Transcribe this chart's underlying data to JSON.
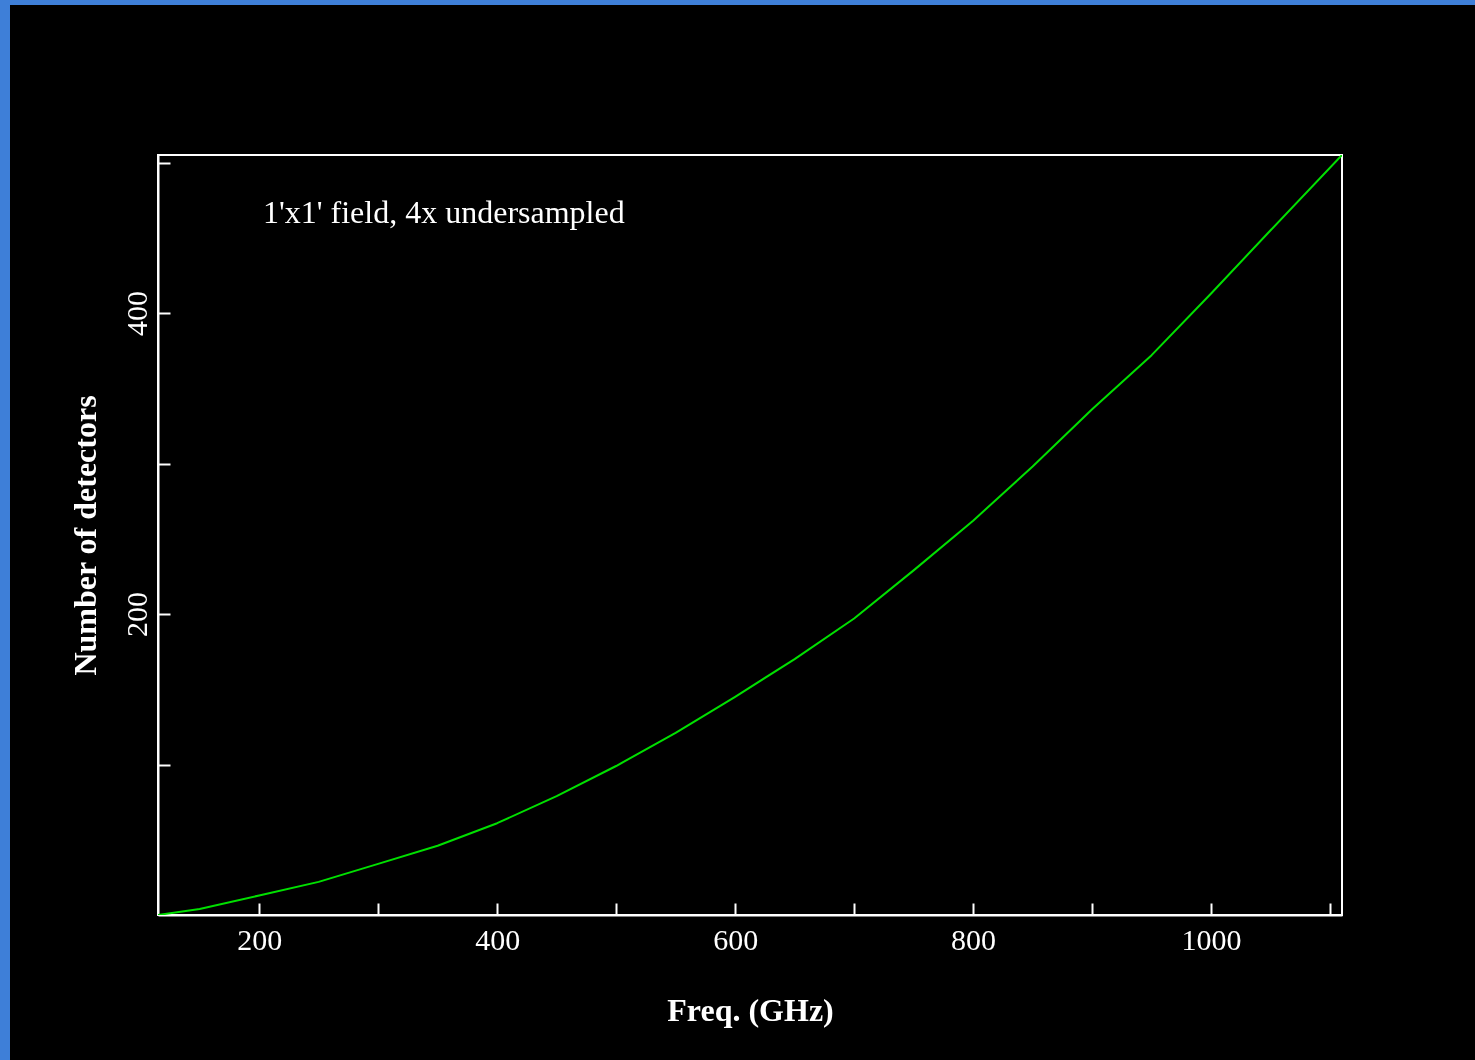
{
  "chart_data": {
    "type": "line",
    "xlabel": "Freq. (GHz)",
    "ylabel": "Number of detectors",
    "annotations": [
      "1'x1' field, 4x undersampled"
    ],
    "x": [
      115,
      150,
      200,
      250,
      300,
      350,
      400,
      450,
      500,
      550,
      600,
      650,
      700,
      750,
      800,
      850,
      900,
      950,
      1000,
      1050,
      1110
    ],
    "series": [
      {
        "color": "#00e000",
        "values": [
          0,
          4,
          13,
          22,
          34,
          46,
          61,
          79,
          99,
          121,
          145,
          170,
          197,
          229,
          262,
          298,
          336,
          372,
          413,
          455,
          505
        ]
      }
    ],
    "xlim": [
      115,
      1110
    ],
    "ylim": [
      0,
      505
    ],
    "xticks": [
      200,
      {
        "value": 300,
        "label": null
      },
      400,
      {
        "value": 500,
        "label": null
      },
      600,
      {
        "value": 700,
        "label": null
      },
      800,
      {
        "value": 900,
        "label": null
      },
      1000,
      {
        "value": 1100,
        "label": null
      }
    ],
    "yticks": [
      {
        "value": 100,
        "label": null
      },
      200,
      {
        "value": 300,
        "label": null
      },
      400,
      {
        "value": 500,
        "label": null
      }
    ],
    "grid": false,
    "marker": "none",
    "line_style": "solid"
  }
}
